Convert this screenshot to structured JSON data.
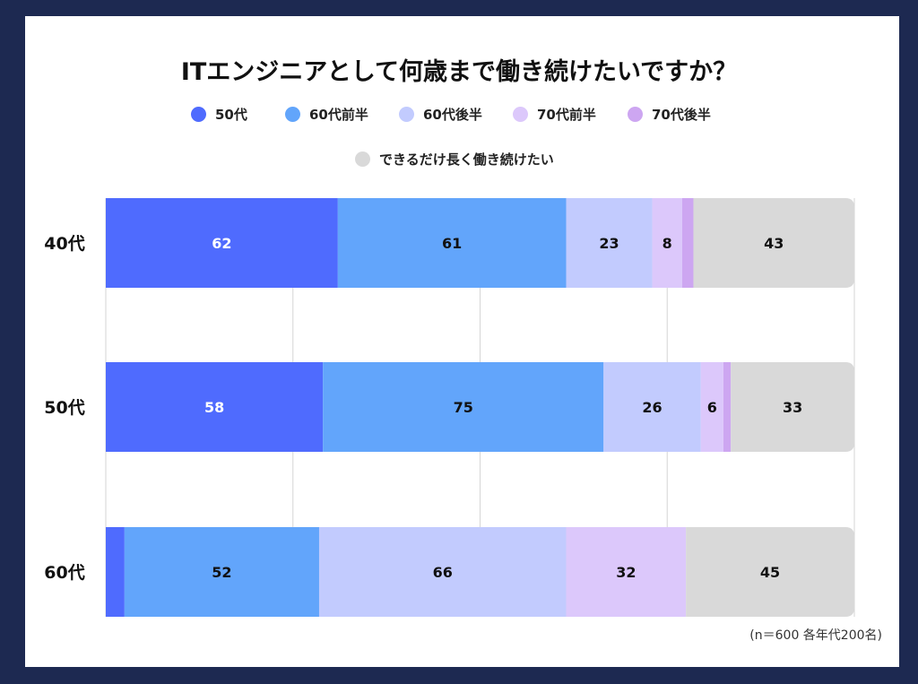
{
  "chart_data": {
    "type": "bar",
    "orientation": "horizontal",
    "stacked": true,
    "title": "ITエンジニアとして何歳まで働き続けたいですか？",
    "categories": [
      "40代",
      "50代",
      "60代"
    ],
    "series": [
      {
        "name": "50代",
        "color": "#4f6bfe",
        "values": [
          62,
          58,
          5
        ],
        "labels": [
          "62",
          "58",
          ""
        ]
      },
      {
        "name": "60代前半",
        "color": "#62a5fb",
        "values": [
          61,
          75,
          52
        ],
        "labels": [
          "61",
          "75",
          "52"
        ]
      },
      {
        "name": "60代後半",
        "color": "#c2cbfe",
        "values": [
          23,
          26,
          66
        ],
        "labels": [
          "23",
          "26",
          "66"
        ]
      },
      {
        "name": "70代前半",
        "color": "#dcc8fb",
        "values": [
          8,
          6,
          32
        ],
        "labels": [
          "8",
          "6",
          "32"
        ]
      },
      {
        "name": "70代後半",
        "color": "#cda6f1",
        "values": [
          3,
          2,
          0
        ],
        "labels": [
          "",
          "",
          ""
        ]
      },
      {
        "name": "できるだけ長く働き続けたい",
        "color": "#d9d9d9",
        "values": [
          43,
          33,
          45
        ],
        "labels": [
          "43",
          "33",
          "45"
        ]
      }
    ],
    "xlim": [
      0,
      200
    ],
    "grid": true,
    "legend_position": "top",
    "note": "(n＝600 各年代200名)"
  }
}
